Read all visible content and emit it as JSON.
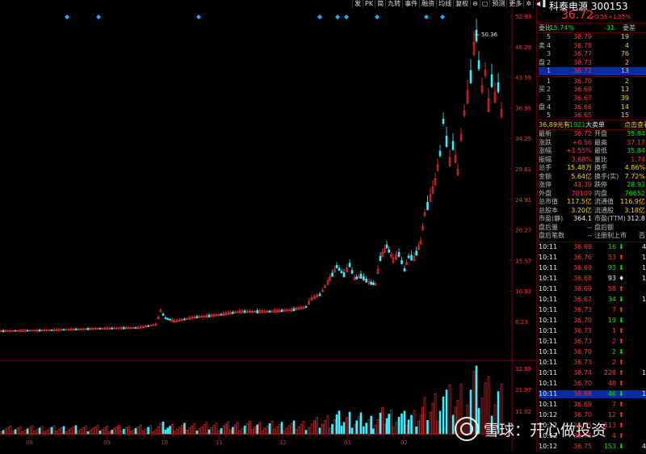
{
  "toolbar": [
    "发",
    "PK",
    "简",
    "九转",
    "事件",
    "融资",
    "均线",
    "复权",
    "预测",
    "更多"
  ],
  "chart_data": {
    "type": "candlestick",
    "y_ticks": [
      "52.93",
      "48.29",
      "43.59",
      "38.95",
      "34.25",
      "29.61",
      "24.91",
      "20.27",
      "15.57",
      "10.93",
      "6.23"
    ],
    "x_ticks": [
      "08",
      "09",
      "10",
      "11",
      "12",
      "01",
      "02"
    ],
    "volume_ticks": [
      "32.69",
      "21.97",
      "11.02"
    ],
    "max_label": "50.36"
  },
  "watermark": "雪球：开心做投资",
  "quote": {
    "name_code": "科泰电源 300153",
    "price": "36.72",
    "change": "+0.56",
    "change_pct": "+1.55%",
    "weibi_label": "委比",
    "weibi_val": "-15.74%",
    "weicha_val": "-31",
    "weicha_label": "委差",
    "sell": [
      {
        "lvl": "5",
        "px": "36.79",
        "vol": "19"
      },
      {
        "lvl": "4",
        "px": "36.78",
        "vol": "4"
      },
      {
        "lvl": "3",
        "px": "36.77",
        "vol": "76"
      },
      {
        "lvl": "2",
        "px": "36.73",
        "vol": "2"
      },
      {
        "lvl": "1",
        "px": "36.72",
        "vol": "13"
      }
    ],
    "sell_tag1": "卖",
    "sell_tag2": "盘",
    "buy": [
      {
        "lvl": "1",
        "px": "36.70",
        "vol": "2"
      },
      {
        "lvl": "2",
        "px": "36.69",
        "vol": "13"
      },
      {
        "lvl": "3",
        "px": "36.67",
        "vol": "39"
      },
      {
        "lvl": "4",
        "px": "36.66",
        "vol": "14"
      },
      {
        "lvl": "5",
        "px": "36.65",
        "vol": "15"
      }
    ],
    "buy_tag1": "买",
    "buy_tag2": "盘",
    "big_left": "36.89元有",
    "big_mid": "1921",
    "big_right": "大卖单",
    "big_link": "点击查看",
    "stats": [
      [
        "最新",
        "36.72",
        "开盘",
        "35.84"
      ],
      [
        "涨跌",
        "+0.56",
        "最高",
        "37.17"
      ],
      [
        "涨幅",
        "+1.55%",
        "最低",
        "35.84"
      ],
      [
        "振幅",
        "3.68%",
        "量比",
        "1.74"
      ],
      [
        "总手",
        "15.48万",
        "换手",
        "4.86%"
      ],
      [
        "金额",
        "5.64亿",
        "换手(实)",
        "7.72%"
      ],
      [
        "涨停",
        "43.39",
        "跌停",
        "28.93"
      ],
      [
        "外盘",
        "78109",
        "内盘",
        "76652"
      ],
      [
        "总市值",
        "117.5亿",
        "流通值",
        "116.9亿"
      ],
      [
        "总股本",
        "3.20亿",
        "流通股",
        "3.18亿"
      ],
      [
        "市盈(静)",
        "364.1",
        "市盈(TTM)",
        "312.8"
      ],
      [
        "盘后量",
        "--",
        "盘后额",
        ""
      ],
      [
        "盘后笔数",
        "--",
        "注册制上市",
        "否"
      ]
    ],
    "ticks": [
      [
        "10:11",
        "36.69",
        "16",
        "b",
        "4"
      ],
      [
        "10:11",
        "36.76",
        "53",
        "s",
        "1"
      ],
      [
        "10:11",
        "36.69",
        "93",
        "b",
        "1"
      ],
      [
        "10:11",
        "36.68",
        "93",
        "n",
        "1"
      ],
      [
        "10:11",
        "36.69",
        "58",
        "s",
        ""
      ],
      [
        "10:11",
        "36.67",
        "34",
        "b",
        "1"
      ],
      [
        "10:11",
        "36.73",
        "7",
        "s",
        ""
      ],
      [
        "10:11",
        "36.70",
        "19",
        "b",
        ""
      ],
      [
        "10:11",
        "36.73",
        "1",
        "s",
        ""
      ],
      [
        "10:11",
        "36.73",
        "2",
        "s",
        ""
      ],
      [
        "10:11",
        "36.70",
        "2",
        "b",
        ""
      ],
      [
        "10:11",
        "36.73",
        "2",
        "s",
        ""
      ],
      [
        "10:11",
        "36.74",
        "228",
        "s",
        "1"
      ],
      [
        "10:11",
        "36.70",
        "48",
        "s",
        ""
      ],
      [
        "10:11",
        "36.68",
        "46",
        "b",
        "1"
      ],
      [
        "10:11",
        "36.69",
        "7",
        "s",
        ""
      ],
      [
        "10:12",
        "36.70",
        "12",
        "s",
        ""
      ],
      [
        "10:12",
        "36.75",
        "113",
        "s",
        ""
      ],
      [
        "10:12",
        "36.75",
        "4",
        "s",
        ""
      ],
      [
        "10:12",
        "36.75",
        "153",
        "b",
        "4"
      ]
    ]
  }
}
